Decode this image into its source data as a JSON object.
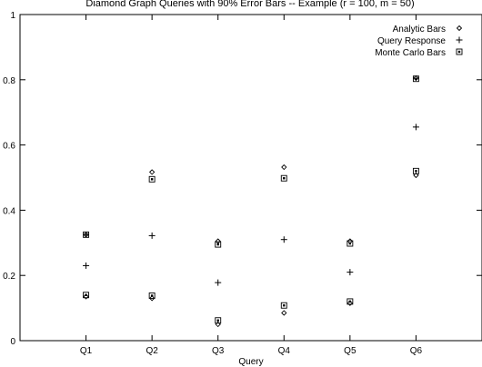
{
  "chart_data": {
    "type": "scatter",
    "title": "Diamond Graph Queries with 90% Error Bars -- Example (r = 100, m = 50)",
    "xlabel": "Query",
    "ylabel": "",
    "categories": [
      "Q1",
      "Q2",
      "Q3",
      "Q4",
      "Q5",
      "Q6"
    ],
    "ylim": [
      0,
      1
    ],
    "xlim": [
      0,
      7
    ],
    "yticks": [
      "0",
      "0.2",
      "0.4",
      "0.6",
      "0.8",
      "1"
    ],
    "grid": false,
    "legend_position": "top-right",
    "series": [
      {
        "name": "Analytic Bars",
        "marker": "diamond",
        "points": [
          {
            "x": "Q1",
            "y": 0.135
          },
          {
            "x": "Q1",
            "y": 0.325
          },
          {
            "x": "Q2",
            "y": 0.13
          },
          {
            "x": "Q2",
            "y": 0.517
          },
          {
            "x": "Q3",
            "y": 0.05
          },
          {
            "x": "Q3",
            "y": 0.305
          },
          {
            "x": "Q4",
            "y": 0.085
          },
          {
            "x": "Q4",
            "y": 0.532
          },
          {
            "x": "Q5",
            "y": 0.115
          },
          {
            "x": "Q5",
            "y": 0.305
          },
          {
            "x": "Q6",
            "y": 0.507
          },
          {
            "x": "Q6",
            "y": 0.805
          }
        ]
      },
      {
        "name": "Query Response",
        "marker": "plus",
        "points": [
          {
            "x": "Q1",
            "y": 0.23
          },
          {
            "x": "Q2",
            "y": 0.322
          },
          {
            "x": "Q3",
            "y": 0.178
          },
          {
            "x": "Q4",
            "y": 0.31
          },
          {
            "x": "Q5",
            "y": 0.21
          },
          {
            "x": "Q6",
            "y": 0.655
          }
        ]
      },
      {
        "name": "Monte Carlo Bars",
        "marker": "boxed-dot",
        "points": [
          {
            "x": "Q1",
            "y": 0.14
          },
          {
            "x": "Q1",
            "y": 0.325
          },
          {
            "x": "Q2",
            "y": 0.138
          },
          {
            "x": "Q2",
            "y": 0.495
          },
          {
            "x": "Q3",
            "y": 0.062
          },
          {
            "x": "Q3",
            "y": 0.295
          },
          {
            "x": "Q4",
            "y": 0.108
          },
          {
            "x": "Q4",
            "y": 0.498
          },
          {
            "x": "Q5",
            "y": 0.12
          },
          {
            "x": "Q5",
            "y": 0.298
          },
          {
            "x": "Q6",
            "y": 0.52
          },
          {
            "x": "Q6",
            "y": 0.803
          }
        ]
      }
    ]
  }
}
